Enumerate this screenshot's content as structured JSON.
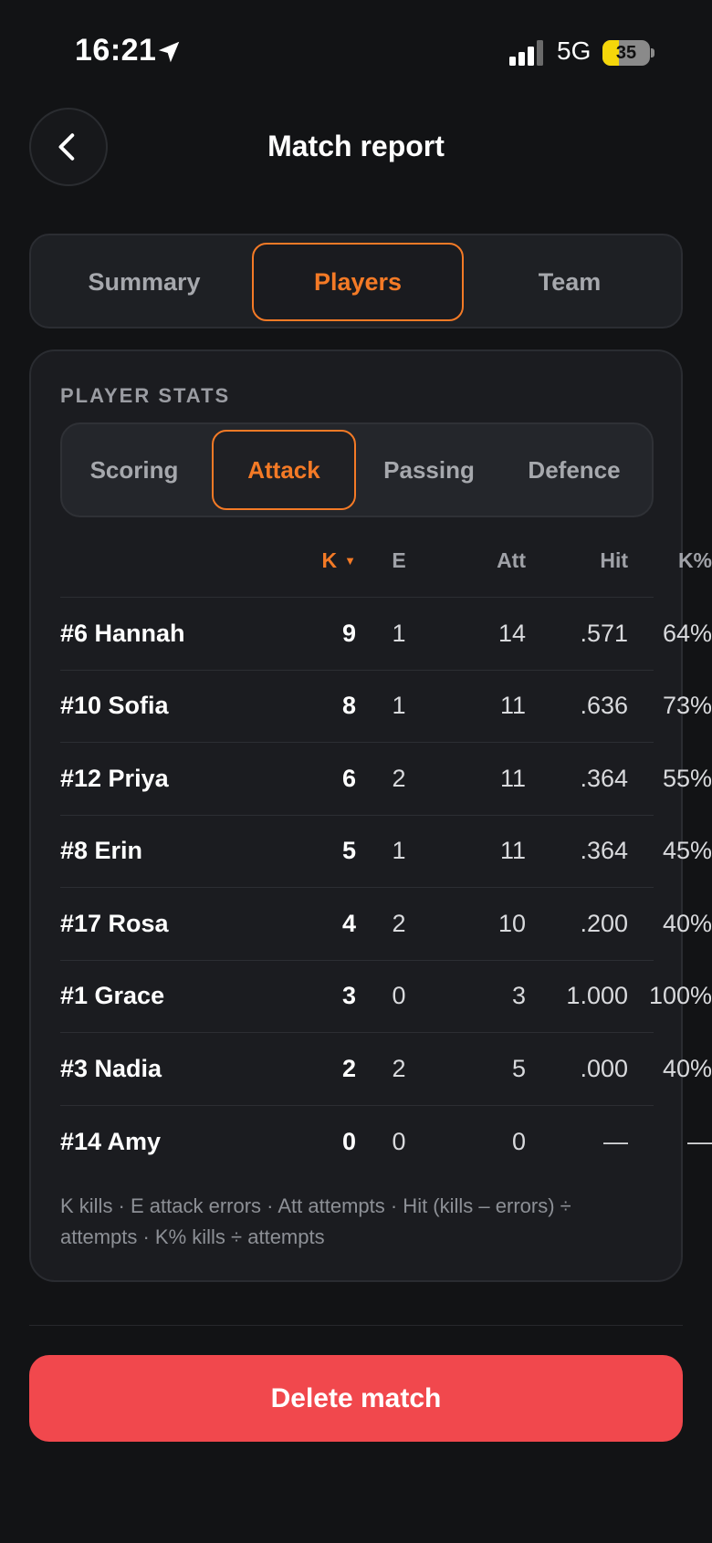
{
  "status_bar": {
    "time": "16:21",
    "network": "5G",
    "battery_percent": "35",
    "battery_level": 0.35,
    "battery_color": "#f5d60a"
  },
  "header": {
    "title": "Match report",
    "back_icon": "chevron-left-icon"
  },
  "main_tabs": [
    {
      "label": "Summary",
      "active": false
    },
    {
      "label": "Players",
      "active": true
    },
    {
      "label": "Team",
      "active": false
    }
  ],
  "stats": {
    "section_label": "PLAYER STATS",
    "sub_tabs": [
      {
        "label": "Scoring",
        "active": false
      },
      {
        "label": "Attack",
        "active": true
      },
      {
        "label": "Passing",
        "active": false
      },
      {
        "label": "Defence",
        "active": false
      }
    ],
    "columns": {
      "k": "K",
      "k_sort": "▼",
      "e": "E",
      "att": "Att",
      "hit": "Hit",
      "kpct": "K%"
    },
    "rows": [
      {
        "player": "#6 Hannah",
        "k": "9",
        "e": "1",
        "att": "14",
        "hit": ".571",
        "kpct": "64%"
      },
      {
        "player": "#10 Sofia",
        "k": "8",
        "e": "1",
        "att": "11",
        "hit": ".636",
        "kpct": "73%"
      },
      {
        "player": "#12 Priya",
        "k": "6",
        "e": "2",
        "att": "11",
        "hit": ".364",
        "kpct": "55%"
      },
      {
        "player": "#8 Erin",
        "k": "5",
        "e": "1",
        "att": "11",
        "hit": ".364",
        "kpct": "45%"
      },
      {
        "player": "#17 Rosa",
        "k": "4",
        "e": "2",
        "att": "10",
        "hit": ".200",
        "kpct": "40%"
      },
      {
        "player": "#1 Grace",
        "k": "3",
        "e": "0",
        "att": "3",
        "hit": "1.000",
        "kpct": "100%"
      },
      {
        "player": "#3 Nadia",
        "k": "2",
        "e": "2",
        "att": "5",
        "hit": ".000",
        "kpct": "40%"
      },
      {
        "player": "#14 Amy",
        "k": "0",
        "e": "0",
        "att": "0",
        "hit": "—",
        "kpct": "—"
      }
    ],
    "legend": "K kills · E attack errors · Att attempts · Hit (kills – errors) ÷ attempts · K% kills ÷ attempts"
  },
  "actions": {
    "delete_label": "Delete match",
    "delete_color": "#f1484d"
  },
  "colors": {
    "accent": "#f47a26",
    "background": "#121315"
  }
}
